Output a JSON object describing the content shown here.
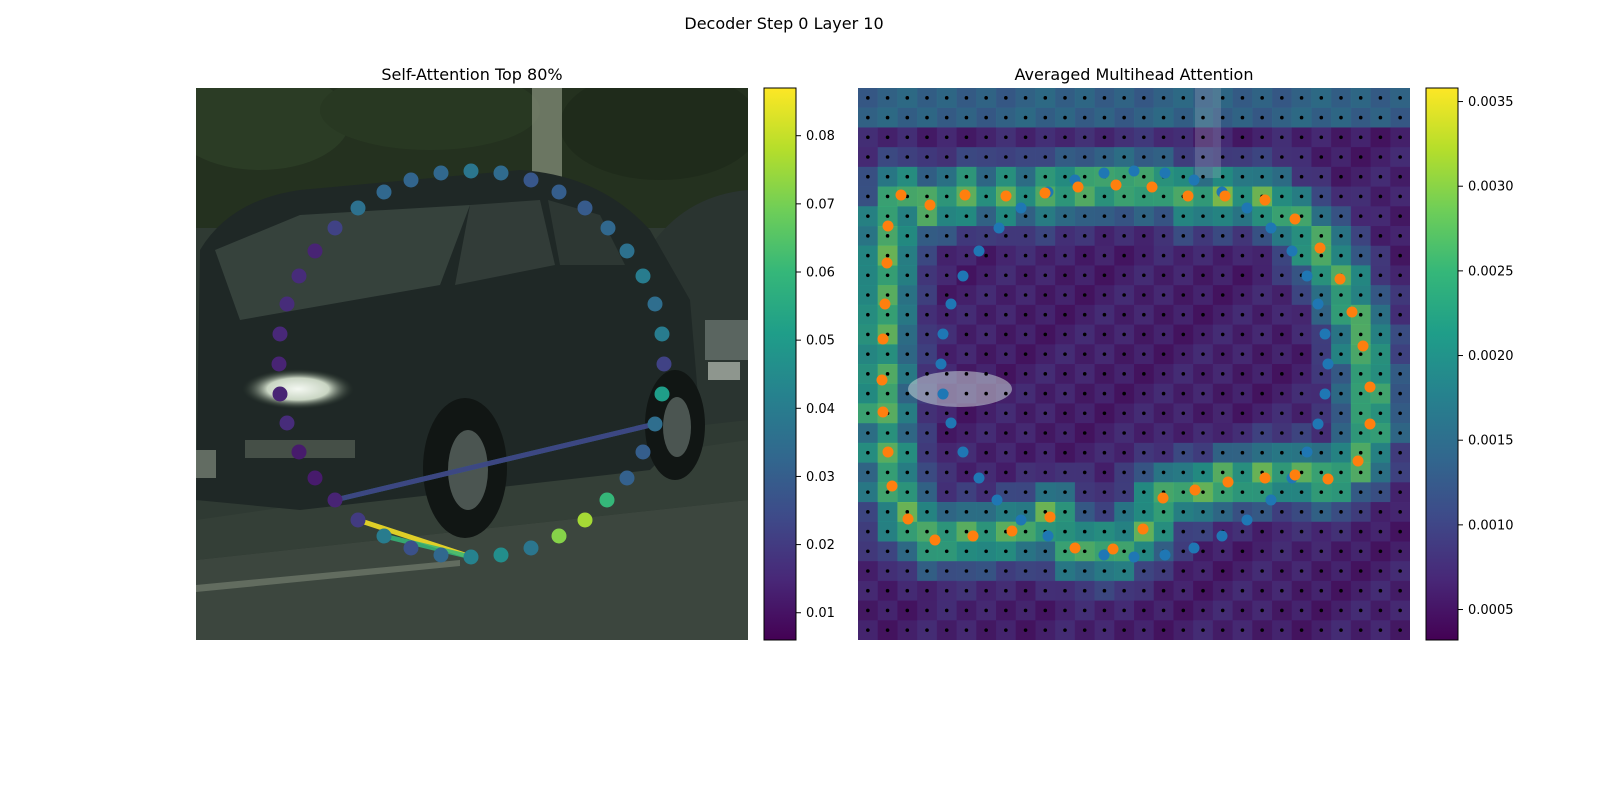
{
  "figure": {
    "suptitle": "Decoder Step 0 Layer 10"
  },
  "colors": {
    "viridis": [
      "#440154",
      "#482878",
      "#3e4a89",
      "#31688e",
      "#26828e",
      "#1f9e89",
      "#35b779",
      "#6ece58",
      "#b5de2b",
      "#fde725"
    ],
    "inner_points": "#1f77b4",
    "outer_points": "#ff7f0e",
    "grid_dots": "#000000"
  },
  "chart_data": [
    {
      "type": "scatter",
      "title": "Self-Attention Top 80%",
      "background": "street photo of a dark hatchback car",
      "colorbar": {
        "min": 0.006,
        "max": 0.087,
        "ticks": [
          0.01,
          0.02,
          0.03,
          0.04,
          0.05,
          0.06,
          0.07,
          0.08
        ],
        "labels": [
          "0.01",
          "0.02",
          "0.03",
          "0.04",
          "0.05",
          "0.06",
          "0.07",
          "0.08"
        ]
      },
      "points": {
        "x": [
          471,
          501,
          531,
          559,
          585,
          608,
          627,
          643,
          655,
          662,
          664,
          662,
          655,
          643,
          627,
          607,
          585,
          559,
          531,
          501,
          471,
          441,
          411,
          384,
          358,
          335,
          315,
          299,
          287,
          280,
          279,
          280,
          287,
          299,
          315,
          335,
          358,
          384,
          411,
          441
        ],
        "y": [
          171,
          173,
          180,
          192,
          208,
          228,
          251,
          276,
          304,
          334,
          364,
          394,
          424,
          452,
          478,
          500,
          520,
          536,
          548,
          555,
          557,
          555,
          548,
          536,
          520,
          500,
          478,
          452,
          423,
          394,
          364,
          334,
          304,
          276,
          251,
          228,
          208,
          192,
          180,
          173
        ],
        "value": [
          0.038,
          0.034,
          0.028,
          0.03,
          0.029,
          0.033,
          0.036,
          0.04,
          0.035,
          0.04,
          0.022,
          0.051,
          0.035,
          0.03,
          0.031,
          0.06,
          0.076,
          0.072,
          0.038,
          0.046,
          0.042,
          0.033,
          0.026,
          0.04,
          0.02,
          0.014,
          0.012,
          0.012,
          0.016,
          0.014,
          0.014,
          0.015,
          0.016,
          0.016,
          0.014,
          0.022,
          0.036,
          0.033,
          0.032,
          0.033
        ]
      },
      "attention_links": [
        {
          "from": 25,
          "to": 12,
          "value": 0.043
        },
        {
          "from": 25,
          "to": 12,
          "value": 0.021
        },
        {
          "from": 20,
          "to": 24,
          "value": 0.087
        },
        {
          "from": 20,
          "to": 23,
          "value": 0.06
        }
      ]
    },
    {
      "type": "heatmap",
      "title": "Averaged Multihead Attention",
      "colorbar": {
        "min": 0.00032,
        "max": 0.00358,
        "ticks": [
          0.0005,
          0.001,
          0.0015,
          0.002,
          0.0025,
          0.003,
          0.0035
        ],
        "labels": [
          "0.0005",
          "0.0010",
          "0.0015",
          "0.0020",
          "0.0025",
          "0.0030",
          "0.0035"
        ]
      },
      "grid": {
        "rows": 28,
        "cols": 28
      },
      "inner_points": {
        "x": [
          1134,
          1165,
          1194,
          1222,
          1247,
          1271,
          1292,
          1307,
          1318,
          1325,
          1328,
          1325,
          1318,
          1307,
          1292,
          1271,
          1247,
          1222,
          1194,
          1165,
          1134,
          1104,
          1075,
          1048,
          1021,
          997,
          979,
          963,
          951,
          943,
          941,
          943,
          951,
          963,
          979,
          999,
          1021,
          1048,
          1075,
          1104
        ],
        "y": [
          171,
          173,
          180,
          192,
          208,
          228,
          251,
          276,
          304,
          334,
          364,
          394,
          424,
          452,
          478,
          500,
          520,
          536,
          548,
          555,
          557,
          555,
          548,
          536,
          520,
          500,
          478,
          452,
          423,
          394,
          364,
          334,
          304,
          276,
          251,
          228,
          208,
          192,
          180,
          173
        ]
      },
      "outer_points": {
        "x": [
          1152,
          1188,
          1225,
          1265,
          1295,
          1320,
          1340,
          1352,
          1363,
          1370,
          1370,
          1358,
          1328,
          1295,
          1265,
          1228,
          1195,
          1163,
          1143,
          1113,
          1075,
          1050,
          1012,
          973,
          935,
          908,
          892,
          888,
          883,
          882,
          883,
          885,
          887,
          888,
          901,
          930,
          965,
          1006,
          1045,
          1078,
          1116
        ],
        "y": [
          187,
          196,
          196,
          200,
          219,
          248,
          279,
          312,
          346,
          387,
          424,
          461,
          479,
          475,
          478,
          482,
          490,
          498,
          529,
          549,
          548,
          517,
          531,
          536,
          540,
          519,
          486,
          452,
          412,
          380,
          339,
          304,
          263,
          226,
          195,
          205,
          195,
          196,
          193,
          187,
          185
        ]
      }
    }
  ]
}
